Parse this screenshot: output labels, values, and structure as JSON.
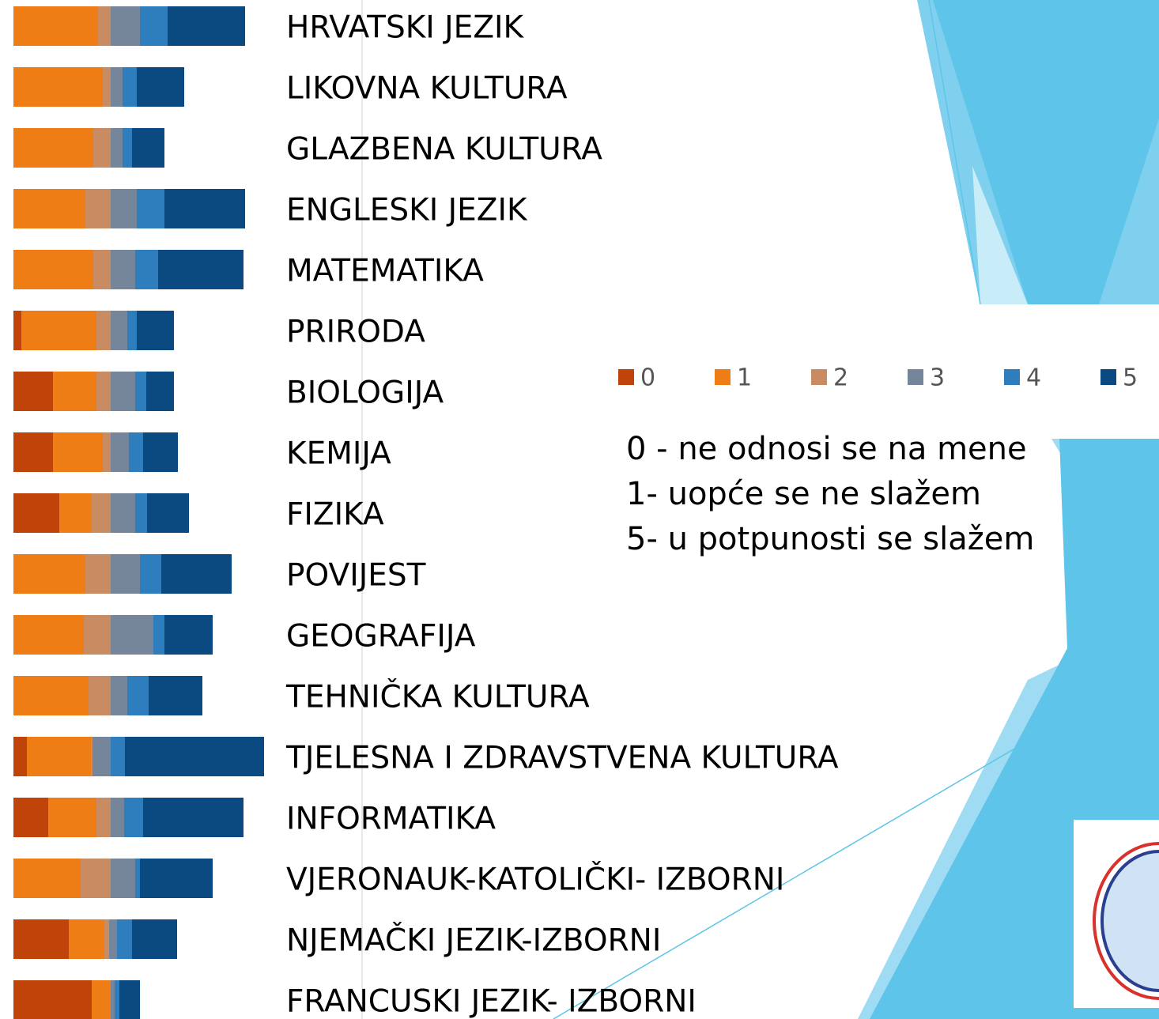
{
  "chart_data": {
    "type": "stacked-barh",
    "categories": [
      "HRVATSKI JEZIK",
      "LIKOVNA KULTURA",
      "GLAZBENA KULTURA",
      "ENGLESKI JEZIK",
      "MATEMATIKA",
      "PRIRODA",
      "BIOLOGIJA",
      "KEMIJA",
      "FIZIKA",
      "POVIJEST",
      "GEOGRAFIJA",
      "TEHNIČKA KULTURA",
      "TJELESNA I ZDRAVSTVENA KULTURA",
      "INFORMATIKA",
      "VJERONAUK-KATOLIČKI- IZBORNI",
      "NJEMAČKI JEZIK-IZBORNI",
      "FRANCUSKI JEZIK- IZBORNI"
    ],
    "series": [
      {
        "name": "0",
        "color": "#c0430a",
        "values": [
          0,
          0,
          0,
          0,
          0,
          10,
          50,
          50,
          58,
          0,
          0,
          0,
          17,
          44,
          0,
          70,
          99
        ]
      },
      {
        "name": "1",
        "color": "#ed7d14",
        "values": [
          107,
          113,
          101,
          91,
          101,
          95,
          55,
          63,
          41,
          91,
          89,
          95,
          81,
          61,
          85,
          45,
          24
        ]
      },
      {
        "name": "2",
        "color": "#c98c62",
        "values": [
          16,
          10,
          22,
          32,
          22,
          18,
          18,
          10,
          24,
          32,
          34,
          28,
          2,
          18,
          38,
          6,
          0
        ]
      },
      {
        "name": "3",
        "color": "#75869a",
        "values": [
          37,
          15,
          15,
          33,
          31,
          21,
          31,
          23,
          31,
          37,
          54,
          21,
          23,
          17,
          31,
          10,
          5
        ]
      },
      {
        "name": "4",
        "color": "#2e7dbd",
        "values": [
          35,
          18,
          12,
          35,
          29,
          12,
          14,
          18,
          15,
          27,
          14,
          27,
          18,
          24,
          6,
          19,
          6
        ]
      },
      {
        "name": "5",
        "color": "#0b4a80",
        "values": [
          98,
          60,
          41,
          102,
          108,
          47,
          35,
          44,
          53,
          89,
          61,
          68,
          176,
          127,
          92,
          57,
          26
        ]
      }
    ],
    "xlim": [
      0,
      340
    ],
    "annotations": [
      "0 - ne odnosi se na mene",
      "1- uopće se ne slažem",
      "5- u potpunosti se slažem"
    ]
  }
}
